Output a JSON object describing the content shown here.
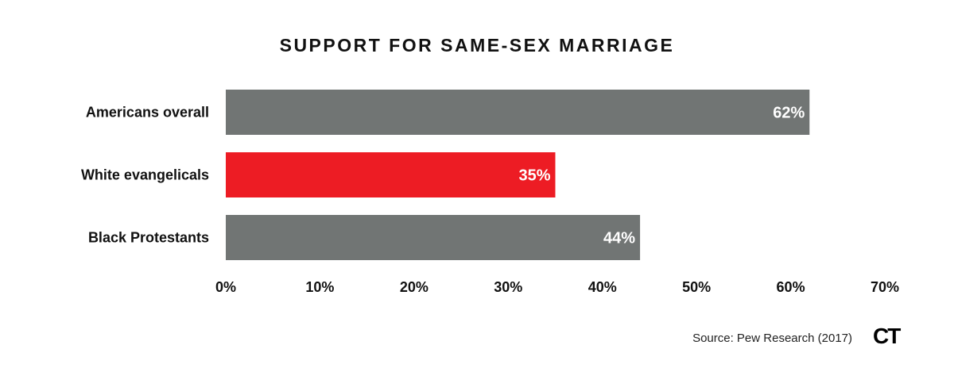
{
  "chart_data": {
    "type": "bar",
    "orientation": "horizontal",
    "title": "SUPPORT FOR SAME-SEX MARRIAGE",
    "categories": [
      "Americans overall",
      "White evangelicals",
      "Black Protestants"
    ],
    "values": [
      62,
      35,
      44
    ],
    "value_labels": [
      "62%",
      "35%",
      "44%"
    ],
    "bar_colors": [
      "#717574",
      "#ED1C24",
      "#717574"
    ],
    "xlim": [
      0,
      70
    ],
    "xticks": [
      0,
      10,
      20,
      30,
      40,
      50,
      60,
      70
    ],
    "xtick_labels": [
      "0%",
      "10%",
      "20%",
      "30%",
      "40%",
      "50%",
      "60%",
      "70%"
    ],
    "grid": false,
    "legend": "none"
  },
  "footer": {
    "source": "Source: Pew Research (2017)",
    "logo_text": "CT"
  },
  "colors": {
    "bar_gray": "#717574",
    "highlight_red": "#ED1C24",
    "text": "#111111",
    "value_text": "#ffffff"
  }
}
